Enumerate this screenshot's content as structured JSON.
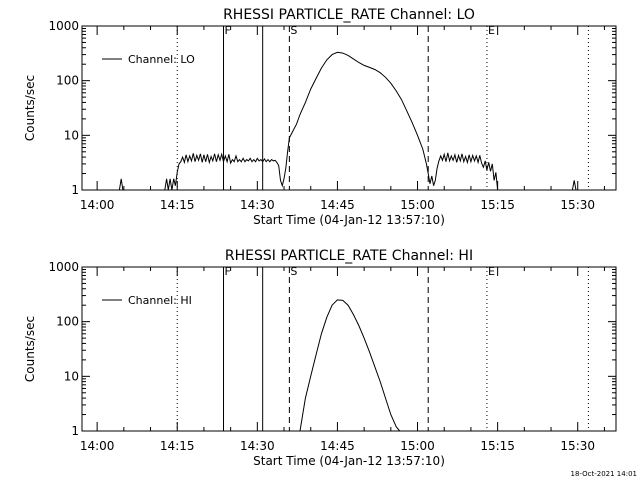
{
  "chart_data": [
    {
      "type": "line",
      "title": "RHESSI PARTICLE_RATE Channel: LO",
      "xlabel": "Start Time (04-Jan-12 13:57:10)",
      "ylabel": "Counts/sec",
      "yscale": "log",
      "ylim": [
        1,
        1000
      ],
      "x_ticks": [
        "14:00",
        "14:15",
        "14:30",
        "14:45",
        "15:00",
        "15:15",
        "15:30"
      ],
      "y_ticks": [
        "1",
        "10",
        "100",
        "1000"
      ],
      "legend": "Channel: LO",
      "markers": [
        {
          "label": "F",
          "time": "14:23:40",
          "style": "solid"
        },
        {
          "label": "",
          "time": "14:31:00",
          "style": "solid"
        },
        {
          "label": "S",
          "time": "14:36:00",
          "style": "dashed"
        },
        {
          "label": "",
          "time": "15:02:00",
          "style": "dashed"
        },
        {
          "label": "E",
          "time": "15:13:00",
          "style": "dotted"
        }
      ],
      "extra_lines": [
        {
          "time": "14:15:00",
          "style": "dotted"
        },
        {
          "time": "15:32:00",
          "style": "dotted"
        }
      ],
      "series": [
        {
          "name": "Channel: LO",
          "points": [
            [
              "14:04:10",
              1
            ],
            [
              "14:04:30",
              1.6
            ],
            [
              "14:04:50",
              1
            ],
            [
              "14:12:40",
              1
            ],
            [
              "14:13:00",
              1.6
            ],
            [
              "14:13:20",
              1
            ],
            [
              "14:13:40",
              1.6
            ],
            [
              "14:14:00",
              1
            ],
            [
              "14:14:20",
              1.6
            ],
            [
              "14:14:40",
              1.2
            ],
            [
              "14:15:00",
              2.1
            ],
            [
              "14:15:20",
              3
            ],
            [
              "14:15:40",
              3.3
            ],
            [
              "14:16:00",
              4
            ],
            [
              "14:16:20",
              3.2
            ],
            [
              "14:16:40",
              4.4
            ],
            [
              "14:17:00",
              3.3
            ],
            [
              "14:17:20",
              4.2
            ],
            [
              "14:17:40",
              3.4
            ],
            [
              "14:18:00",
              4.7
            ],
            [
              "14:18:20",
              3.3
            ],
            [
              "14:18:40",
              4.3
            ],
            [
              "14:19:00",
              3.5
            ],
            [
              "14:19:20",
              4.6
            ],
            [
              "14:19:40",
              3.2
            ],
            [
              "14:20:00",
              4.4
            ],
            [
              "14:20:20",
              3.3
            ],
            [
              "14:20:40",
              4.5
            ],
            [
              "14:21:00",
              3.2
            ],
            [
              "14:21:20",
              4.1
            ],
            [
              "14:21:40",
              3.4
            ],
            [
              "14:22:00",
              4.6
            ],
            [
              "14:22:20",
              3.3
            ],
            [
              "14:22:40",
              4.4
            ],
            [
              "14:23:00",
              3.5
            ],
            [
              "14:23:20",
              4.5
            ],
            [
              "14:23:40",
              3.3
            ],
            [
              "14:24:00",
              4.2
            ],
            [
              "14:24:20",
              3.3
            ],
            [
              "14:24:40",
              4.5
            ],
            [
              "14:25:00",
              3.1
            ],
            [
              "14:25:20",
              3.6
            ],
            [
              "14:25:40",
              3.3
            ],
            [
              "14:26:00",
              4.2
            ],
            [
              "14:26:20",
              3.3
            ],
            [
              "14:26:40",
              3.6
            ],
            [
              "14:27:00",
              3.3
            ],
            [
              "14:27:20",
              3.8
            ],
            [
              "14:27:40",
              3.3
            ],
            [
              "14:28:00",
              3.6
            ],
            [
              "14:28:20",
              3.4
            ],
            [
              "14:28:40",
              3.8
            ],
            [
              "14:29:00",
              3.3
            ],
            [
              "14:29:20",
              3.6
            ],
            [
              "14:29:40",
              3.3
            ],
            [
              "14:30:00",
              3.8
            ],
            [
              "14:30:20",
              3.4
            ],
            [
              "14:30:40",
              3.6
            ],
            [
              "14:31:00",
              3.3
            ],
            [
              "14:31:20",
              3.7
            ],
            [
              "14:31:40",
              3.3
            ],
            [
              "14:32:00",
              3.6
            ],
            [
              "14:32:20",
              3.3
            ],
            [
              "14:32:40",
              3.6
            ],
            [
              "14:33:00",
              3.4
            ],
            [
              "14:33:20",
              3.5
            ],
            [
              "14:33:40",
              3.2
            ],
            [
              "14:34:00",
              2.8
            ],
            [
              "14:34:20",
              1.5
            ],
            [
              "14:34:40",
              1.2
            ],
            [
              "14:35:00",
              1.6
            ],
            [
              "14:35:20",
              2.5
            ],
            [
              "14:35:40",
              5
            ],
            [
              "14:36:00",
              9
            ],
            [
              "14:36:40",
              12
            ],
            [
              "14:37:20",
              16
            ],
            [
              "14:38:00",
              24
            ],
            [
              "14:39:00",
              40
            ],
            [
              "14:40:00",
              70
            ],
            [
              "14:41:00",
              110
            ],
            [
              "14:42:00",
              170
            ],
            [
              "14:43:00",
              240
            ],
            [
              "14:44:00",
              300
            ],
            [
              "14:45:00",
              330
            ],
            [
              "14:46:00",
              320
            ],
            [
              "14:47:00",
              290
            ],
            [
              "14:48:00",
              250
            ],
            [
              "14:49:00",
              215
            ],
            [
              "14:50:00",
              190
            ],
            [
              "14:51:00",
              175
            ],
            [
              "14:52:00",
              160
            ],
            [
              "14:53:00",
              140
            ],
            [
              "14:54:00",
              115
            ],
            [
              "14:55:00",
              90
            ],
            [
              "14:56:00",
              65
            ],
            [
              "14:57:00",
              45
            ],
            [
              "14:58:00",
              28
            ],
            [
              "14:59:00",
              17
            ],
            [
              "15:00:00",
              10
            ],
            [
              "15:01:00",
              5.5
            ],
            [
              "15:01:40",
              3
            ],
            [
              "15:02:00",
              2
            ],
            [
              "15:02:20",
              1.3
            ],
            [
              "15:02:40",
              1.8
            ],
            [
              "15:03:00",
              1.2
            ],
            [
              "15:03:20",
              1.5
            ],
            [
              "15:03:40",
              2.5
            ],
            [
              "15:04:00",
              3.4
            ],
            [
              "15:04:20",
              4.2
            ],
            [
              "15:04:40",
              3.5
            ],
            [
              "15:05:00",
              4.5
            ],
            [
              "15:05:20",
              3.3
            ],
            [
              "15:05:40",
              4.8
            ],
            [
              "15:06:00",
              3.4
            ],
            [
              "15:06:20",
              4.2
            ],
            [
              "15:06:40",
              3.5
            ],
            [
              "15:07:00",
              4.4
            ],
            [
              "15:07:20",
              3.2
            ],
            [
              "15:07:40",
              4.3
            ],
            [
              "15:08:00",
              3.4
            ],
            [
              "15:08:20",
              4.6
            ],
            [
              "15:08:40",
              3.3
            ],
            [
              "15:09:00",
              4.1
            ],
            [
              "15:09:20",
              3.2
            ],
            [
              "15:09:40",
              4.4
            ],
            [
              "15:10:00",
              3.3
            ],
            [
              "15:10:20",
              4.3
            ],
            [
              "15:10:40",
              3.4
            ],
            [
              "15:11:00",
              4.2
            ],
            [
              "15:11:20",
              3.2
            ],
            [
              "15:11:40",
              4.3
            ],
            [
              "15:12:00",
              3.1
            ],
            [
              "15:12:20",
              2.6
            ],
            [
              "15:12:40",
              3.4
            ],
            [
              "15:13:00",
              2.3
            ],
            [
              "15:13:20",
              3.2
            ],
            [
              "15:13:40",
              2.2
            ],
            [
              "15:14:00",
              3
            ],
            [
              "15:14:20",
              1.5
            ],
            [
              "15:14:40",
              2.1
            ],
            [
              "15:15:00",
              1
            ],
            [
              "15:29:00",
              1
            ],
            [
              "15:29:20",
              1.5
            ],
            [
              "15:29:40",
              1
            ]
          ]
        }
      ]
    },
    {
      "type": "line",
      "title": "RHESSI PARTICLE_RATE Channel: HI",
      "xlabel": "Start Time (04-Jan-12 13:57:10)",
      "ylabel": "Counts/sec",
      "yscale": "log",
      "ylim": [
        1,
        1000
      ],
      "x_ticks": [
        "14:00",
        "14:15",
        "14:30",
        "14:45",
        "15:00",
        "15:15",
        "15:30"
      ],
      "y_ticks": [
        "1",
        "10",
        "100",
        "1000"
      ],
      "legend": "Channel: HI",
      "markers": [
        {
          "label": "F",
          "time": "14:23:40",
          "style": "solid"
        },
        {
          "label": "",
          "time": "14:31:00",
          "style": "solid"
        },
        {
          "label": "S",
          "time": "14:36:00",
          "style": "dashed"
        },
        {
          "label": "",
          "time": "15:02:00",
          "style": "dashed"
        },
        {
          "label": "E",
          "time": "15:13:00",
          "style": "dotted"
        }
      ],
      "extra_lines": [
        {
          "time": "14:15:00",
          "style": "dotted"
        },
        {
          "time": "15:32:00",
          "style": "dotted"
        }
      ],
      "series": [
        {
          "name": "Channel: HI",
          "points": [
            [
              "14:38:00",
              1
            ],
            [
              "14:39:00",
              4
            ],
            [
              "14:40:00",
              10
            ],
            [
              "14:41:00",
              25
            ],
            [
              "14:42:00",
              60
            ],
            [
              "14:43:00",
              120
            ],
            [
              "14:44:00",
              200
            ],
            [
              "14:45:00",
              250
            ],
            [
              "14:46:00",
              245
            ],
            [
              "14:47:00",
              200
            ],
            [
              "14:48:00",
              135
            ],
            [
              "14:49:00",
              85
            ],
            [
              "14:50:00",
              50
            ],
            [
              "14:51:00",
              28
            ],
            [
              "14:52:00",
              15
            ],
            [
              "14:53:00",
              8
            ],
            [
              "14:54:00",
              4
            ],
            [
              "14:55:00",
              2
            ],
            [
              "14:56:00",
              1.2
            ],
            [
              "14:56:40",
              1
            ]
          ]
        }
      ]
    }
  ],
  "footer_date": "18-Oct-2021 14:01"
}
